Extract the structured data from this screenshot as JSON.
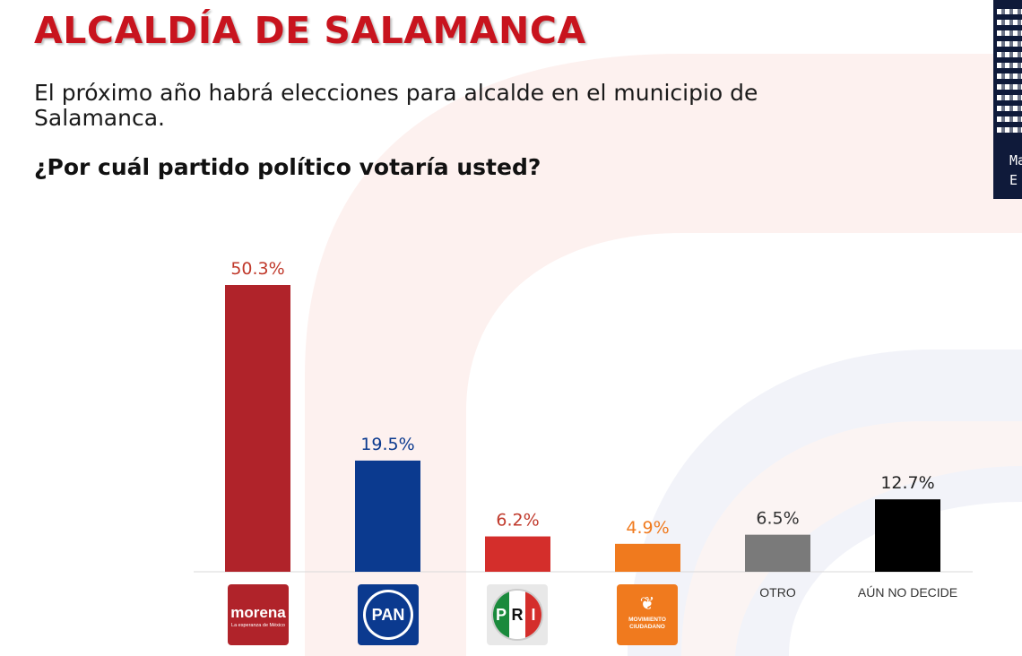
{
  "header": {
    "title": "ALCALDÍA DE SALAMANCA",
    "intro": "El próximo año habrá elecciones para alcalde en el municipio de Salamanca.",
    "question": "¿Por cuál partido político votaría usted?"
  },
  "qr_panel": {
    "text_line1": "Ma",
    "text_line2": "E"
  },
  "logos": {
    "morena": {
      "name": "morena",
      "tagline": "La esperanza de México"
    },
    "pan": {
      "name": "PAN"
    },
    "pri": {
      "letters": [
        "P",
        "R",
        "I"
      ]
    },
    "mc": {
      "icon": "eagle-icon",
      "name_line1": "MOVIMIENTO",
      "name_line2": "CIUDADANO"
    }
  },
  "colors": {
    "title": "#c8141e",
    "morena": "#b0232a",
    "pan": "#0b3a8f",
    "pri": "#d42e2b",
    "mc": "#f07a1e",
    "otro": "#7a7a7a",
    "no_decide": "#000000"
  },
  "chart_data": {
    "type": "bar",
    "title": "",
    "xlabel": "",
    "ylabel": "",
    "ylim": [
      0,
      50.3
    ],
    "grid": false,
    "categories": [
      "morena",
      "PAN",
      "PRI",
      "MOVIMIENTO CIUDADANO",
      "OTRO",
      "AÚN NO DECIDE"
    ],
    "category_labels_printed": [
      "",
      "",
      "",
      "",
      "OTRO",
      "AÚN NO DECIDE"
    ],
    "values": [
      50.3,
      19.5,
      6.2,
      4.9,
      6.5,
      12.7
    ],
    "value_labels": [
      "50.3%",
      "19.5%",
      "6.2%",
      "4.9%",
      "6.5%",
      "12.7%"
    ],
    "bar_colors": [
      "#b0232a",
      "#0b3a8f",
      "#d42e2b",
      "#f07a1e",
      "#7a7a7a",
      "#000000"
    ],
    "label_colors": [
      "#c0392b",
      "#0b3a8f",
      "#c0392b",
      "#f07a1e",
      "#333333",
      "#222222"
    ]
  }
}
